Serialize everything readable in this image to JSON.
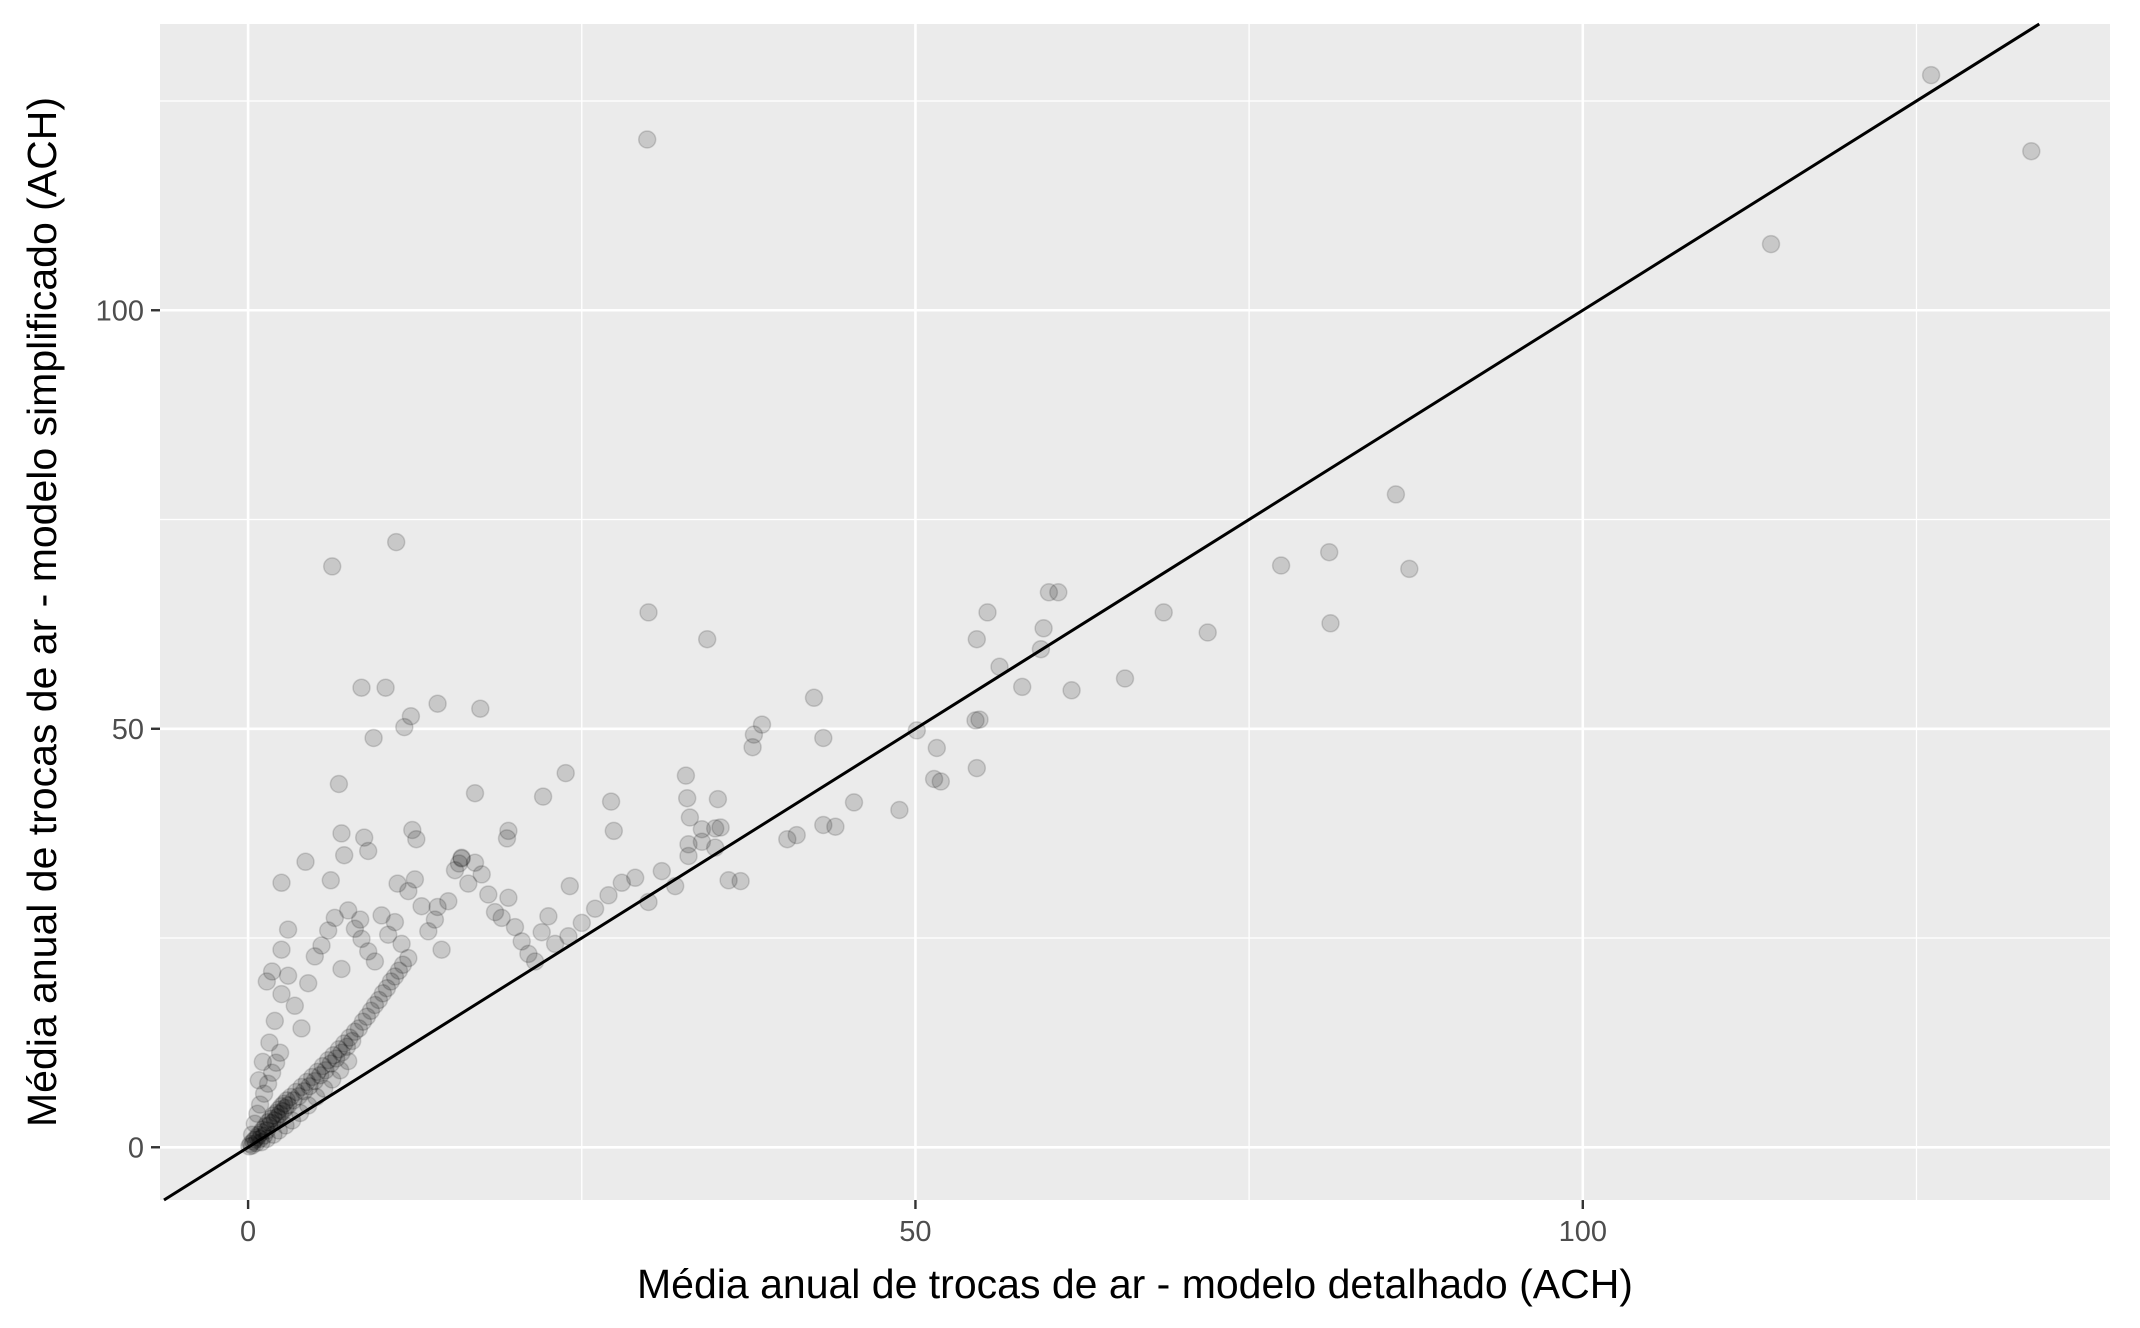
{
  "chart_data": {
    "type": "scatter",
    "title": "",
    "xlabel": "Média anual de trocas de ar - modelo detalhado (ACH)",
    "ylabel": "Média anual de trocas de ar - modelo simplificado (ACH)",
    "xlim": [
      -6.6,
      139.5
    ],
    "ylim": [
      -6.3,
      134.2
    ],
    "x_ticks": [
      0,
      50,
      100
    ],
    "x_tick_labels": [
      "0",
      "50",
      "100"
    ],
    "y_ticks": [
      0,
      50,
      100
    ],
    "y_tick_labels": [
      "0",
      "50",
      "100"
    ],
    "grid": true,
    "legend": "none",
    "reference_line": {
      "slope": 1,
      "intercept": 0
    },
    "colors": {
      "panel": "#ebebeb",
      "grid": "#ffffff",
      "point": "#000000",
      "line": "#000000"
    },
    "point_alpha": 0.15,
    "points": [
      [
        0.1,
        0.1
      ],
      [
        0.2,
        0.4
      ],
      [
        0.3,
        0.2
      ],
      [
        0.4,
        0.7
      ],
      [
        0.5,
        0.9
      ],
      [
        0.6,
        0.5
      ],
      [
        0.7,
        1.2
      ],
      [
        0.8,
        1.5
      ],
      [
        0.9,
        1.0
      ],
      [
        1.0,
        1.8
      ],
      [
        1.1,
        2.1
      ],
      [
        1.2,
        1.4
      ],
      [
        1.3,
        2.5
      ],
      [
        1.4,
        2.0
      ],
      [
        1.5,
        3.0
      ],
      [
        1.6,
        2.6
      ],
      [
        1.7,
        3.4
      ],
      [
        1.8,
        2.9
      ],
      [
        1.9,
        3.8
      ],
      [
        2.0,
        3.2
      ],
      [
        2.1,
        4.1
      ],
      [
        2.2,
        3.6
      ],
      [
        2.3,
        4.5
      ],
      [
        2.4,
        4.0
      ],
      [
        2.5,
        4.9
      ],
      [
        2.6,
        4.3
      ],
      [
        2.7,
        5.2
      ],
      [
        2.8,
        4.7
      ],
      [
        2.9,
        5.6
      ],
      [
        3.0,
        5.0
      ],
      [
        3.2,
        6.0
      ],
      [
        3.4,
        5.6
      ],
      [
        3.6,
        6.6
      ],
      [
        3.8,
        6.1
      ],
      [
        4.0,
        7.2
      ],
      [
        4.2,
        6.7
      ],
      [
        4.4,
        7.8
      ],
      [
        4.6,
        7.3
      ],
      [
        4.8,
        8.4
      ],
      [
        5.0,
        7.9
      ],
      [
        5.2,
        9.0
      ],
      [
        5.4,
        8.6
      ],
      [
        5.6,
        9.7
      ],
      [
        5.8,
        9.2
      ],
      [
        6.0,
        10.4
      ],
      [
        6.2,
        10.0
      ],
      [
        6.4,
        11.0
      ],
      [
        6.6,
        10.6
      ],
      [
        6.8,
        11.7
      ],
      [
        7.0,
        11.3
      ],
      [
        7.2,
        12.4
      ],
      [
        7.4,
        12.0
      ],
      [
        7.6,
        13.1
      ],
      [
        7.8,
        12.7
      ],
      [
        8.0,
        13.8
      ],
      [
        8.3,
        14.2
      ],
      [
        8.6,
        15.0
      ],
      [
        8.9,
        15.6
      ],
      [
        9.2,
        16.3
      ],
      [
        9.5,
        17.0
      ],
      [
        9.8,
        17.6
      ],
      [
        10.1,
        18.4
      ],
      [
        10.4,
        19.0
      ],
      [
        10.7,
        19.8
      ],
      [
        11.0,
        20.4
      ],
      [
        11.3,
        21.1
      ],
      [
        11.6,
        21.8
      ],
      [
        12.0,
        22.6
      ],
      [
        0.3,
        1.5
      ],
      [
        0.5,
        2.8
      ],
      [
        0.7,
        4.0
      ],
      [
        0.9,
        5.1
      ],
      [
        1.2,
        6.4
      ],
      [
        1.5,
        7.6
      ],
      [
        1.8,
        8.9
      ],
      [
        2.1,
        10.1
      ],
      [
        2.4,
        11.3
      ],
      [
        1.0,
        0.6
      ],
      [
        1.4,
        1.0
      ],
      [
        1.9,
        1.5
      ],
      [
        2.3,
        2.0
      ],
      [
        2.8,
        2.6
      ],
      [
        3.3,
        3.2
      ],
      [
        3.9,
        4.1
      ],
      [
        4.5,
        5.0
      ],
      [
        5.1,
        6.0
      ],
      [
        5.7,
        7.0
      ],
      [
        6.3,
        8.1
      ],
      [
        6.9,
        9.2
      ],
      [
        7.5,
        10.3
      ],
      [
        0.8,
        8.0
      ],
      [
        1.1,
        10.2
      ],
      [
        1.6,
        12.5
      ],
      [
        2.0,
        15.1
      ],
      [
        2.5,
        18.3
      ],
      [
        3.0,
        20.5
      ],
      [
        3.5,
        16.9
      ],
      [
        4.0,
        14.2
      ],
      [
        4.5,
        19.6
      ],
      [
        5.0,
        22.8
      ],
      [
        5.5,
        24.1
      ],
      [
        6.0,
        25.9
      ],
      [
        6.5,
        27.4
      ],
      [
        7.0,
        21.3
      ],
      [
        7.5,
        28.3
      ],
      [
        8.0,
        26.1
      ],
      [
        8.5,
        24.9
      ],
      [
        9.0,
        23.4
      ],
      [
        9.5,
        22.2
      ],
      [
        10.0,
        27.7
      ],
      [
        10.5,
        25.4
      ],
      [
        11.0,
        26.9
      ],
      [
        11.5,
        24.3
      ],
      [
        12.0,
        30.6
      ],
      [
        12.5,
        32.0
      ],
      [
        13.0,
        28.8
      ],
      [
        13.5,
        25.8
      ],
      [
        14.0,
        27.2
      ],
      [
        14.5,
        23.6
      ],
      [
        15.0,
        29.4
      ],
      [
        15.5,
        33.1
      ],
      [
        16.0,
        34.5
      ],
      [
        16.5,
        31.5
      ],
      [
        17.0,
        34.0
      ],
      [
        17.5,
        32.6
      ],
      [
        18.0,
        30.2
      ],
      [
        18.5,
        28.1
      ],
      [
        19.0,
        27.4
      ],
      [
        19.5,
        29.8
      ],
      [
        20.0,
        26.3
      ],
      [
        20.5,
        24.6
      ],
      [
        21.0,
        23.1
      ],
      [
        21.5,
        22.2
      ],
      [
        22.0,
        25.7
      ],
      [
        22.5,
        27.6
      ],
      [
        23.0,
        24.3
      ],
      [
        24.0,
        25.2
      ],
      [
        25.0,
        26.8
      ],
      [
        26.0,
        28.5
      ],
      [
        27.0,
        30.1
      ],
      [
        28.0,
        31.6
      ],
      [
        29.0,
        32.2
      ],
      [
        30.0,
        29.3
      ],
      [
        31.0,
        33.0
      ],
      [
        32.0,
        31.2
      ],
      [
        33.0,
        34.8
      ],
      [
        34.0,
        36.5
      ],
      [
        35.0,
        38.1
      ],
      [
        36.0,
        31.9
      ],
      [
        12.3,
        37.9
      ],
      [
        12.6,
        36.8
      ],
      [
        16.0,
        34.6
      ],
      [
        15.8,
        33.9
      ],
      [
        19.5,
        37.8
      ],
      [
        19.4,
        36.9
      ],
      [
        17.0,
        42.3
      ],
      [
        14.2,
        28.7
      ],
      [
        11.2,
        31.5
      ],
      [
        9.0,
        35.4
      ],
      [
        8.4,
        27.2
      ],
      [
        6.2,
        31.9
      ],
      [
        6.8,
        43.4
      ],
      [
        7.0,
        37.5
      ],
      [
        8.7,
        37.0
      ],
      [
        7.2,
        34.9
      ],
      [
        4.3,
        34.1
      ],
      [
        2.5,
        31.6
      ],
      [
        3.0,
        26.0
      ],
      [
        2.5,
        23.6
      ],
      [
        1.8,
        21.0
      ],
      [
        1.4,
        19.8
      ],
      [
        6.3,
        69.4
      ],
      [
        11.1,
        72.3
      ],
      [
        8.5,
        54.9
      ],
      [
        10.3,
        54.9
      ],
      [
        11.7,
        50.2
      ],
      [
        12.2,
        51.5
      ],
      [
        14.2,
        53.0
      ],
      [
        17.4,
        52.4
      ],
      [
        9.4,
        48.9
      ],
      [
        23.8,
        44.7
      ],
      [
        22.1,
        41.9
      ],
      [
        27.2,
        41.3
      ],
      [
        27.4,
        37.8
      ],
      [
        24.1,
        31.2
      ],
      [
        30.0,
        63.9
      ],
      [
        34.4,
        60.7
      ],
      [
        29.9,
        120.4
      ],
      [
        32.8,
        44.4
      ],
      [
        32.9,
        41.7
      ],
      [
        33.1,
        39.4
      ],
      [
        34.0,
        38.0
      ],
      [
        35.2,
        41.6
      ],
      [
        35.4,
        38.2
      ],
      [
        35.0,
        35.8
      ],
      [
        33.0,
        36.2
      ],
      [
        37.8,
        47.8
      ],
      [
        37.9,
        49.3
      ],
      [
        38.5,
        50.5
      ],
      [
        36.9,
        31.8
      ],
      [
        42.4,
        53.7
      ],
      [
        43.1,
        48.9
      ],
      [
        44.0,
        38.3
      ],
      [
        45.4,
        41.2
      ],
      [
        43.1,
        38.5
      ],
      [
        41.1,
        37.3
      ],
      [
        40.4,
        36.8
      ],
      [
        48.8,
        40.3
      ],
      [
        50.1,
        49.8
      ],
      [
        51.6,
        47.7
      ],
      [
        51.4,
        44.0
      ],
      [
        51.9,
        43.7
      ],
      [
        54.5,
        51.0
      ],
      [
        54.6,
        45.3
      ],
      [
        54.8,
        51.1
      ],
      [
        54.6,
        60.7
      ],
      [
        55.4,
        63.9
      ],
      [
        56.3,
        57.4
      ],
      [
        58.0,
        55.0
      ],
      [
        59.4,
        59.5
      ],
      [
        59.6,
        62.0
      ],
      [
        60.0,
        66.3
      ],
      [
        60.7,
        66.3
      ],
      [
        61.7,
        54.6
      ],
      [
        65.7,
        56.0
      ],
      [
        68.6,
        63.9
      ],
      [
        71.9,
        61.5
      ],
      [
        77.4,
        69.5
      ],
      [
        81.0,
        71.1
      ],
      [
        81.1,
        62.6
      ],
      [
        86.0,
        78.0
      ],
      [
        87.0,
        69.1
      ],
      [
        114.1,
        107.9
      ],
      [
        126.1,
        128.1
      ],
      [
        133.6,
        119.0
      ]
    ]
  }
}
